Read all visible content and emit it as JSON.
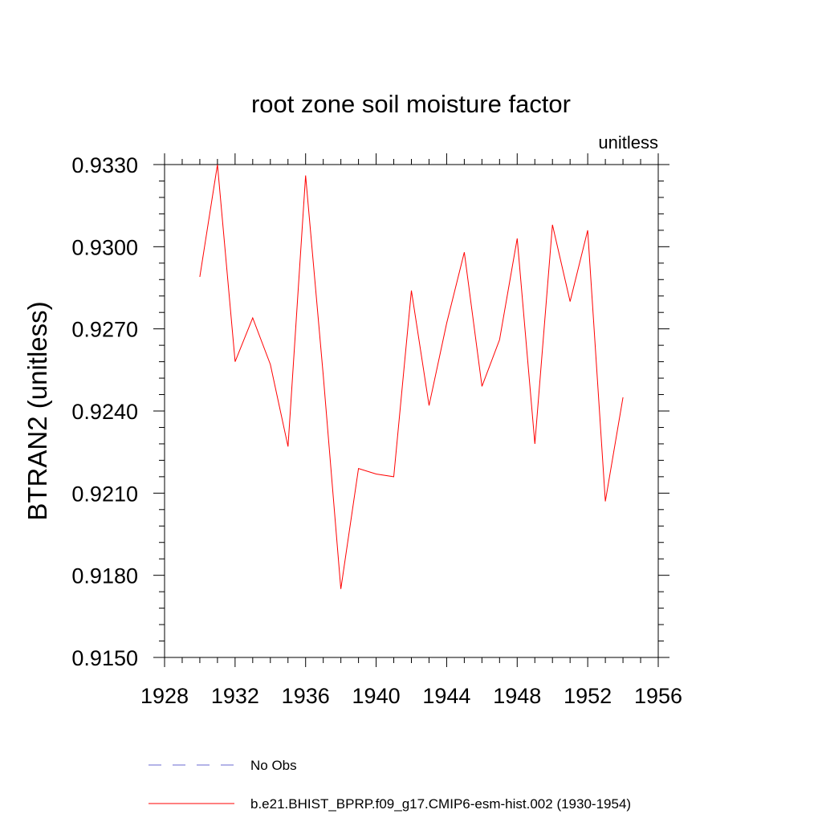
{
  "chart_data": {
    "type": "line",
    "title": "root zone soil moisture factor",
    "units_label": "unitless",
    "ylabel": "BTRAN2  (unitless)",
    "xlabel": "",
    "xlim": [
      1928,
      1956
    ],
    "ylim": [
      0.915,
      0.933
    ],
    "x_ticks": [
      1928,
      1932,
      1936,
      1940,
      1944,
      1948,
      1952,
      1956
    ],
    "x_tick_labels": [
      "1928",
      "1932",
      "1936",
      "1940",
      "1944",
      "1948",
      "1952",
      "1956"
    ],
    "y_ticks": [
      0.915,
      0.918,
      0.921,
      0.924,
      0.927,
      0.93,
      0.933
    ],
    "y_tick_labels": [
      "0.9150",
      "0.9180",
      "0.9210",
      "0.9240",
      "0.9270",
      "0.9300",
      "0.9330"
    ],
    "grid": false,
    "series": [
      {
        "name": "b.e21.BHIST_BPRP.f09_g17.CMIP6-esm-hist.002 (1930-1954)",
        "color": "#ff0000",
        "dash": "solid",
        "x": [
          1930,
          1931,
          1932,
          1933,
          1934,
          1935,
          1936,
          1937,
          1938,
          1939,
          1940,
          1941,
          1942,
          1943,
          1944,
          1945,
          1946,
          1947,
          1948,
          1949,
          1950,
          1951,
          1952,
          1953,
          1954
        ],
        "values": [
          0.9289,
          0.933,
          0.9258,
          0.9274,
          0.9257,
          0.9227,
          0.9326,
          0.9253,
          0.9175,
          0.9219,
          0.9217,
          0.9216,
          0.9284,
          0.9242,
          0.9272,
          0.9298,
          0.9249,
          0.9266,
          0.9303,
          0.9228,
          0.9308,
          0.928,
          0.9306,
          0.9207,
          0.9245
        ]
      }
    ],
    "legend": {
      "placement": "bottom-left",
      "entries": [
        {
          "label": "No Obs",
          "color": "#6a6ad0",
          "dash": "dashed"
        },
        {
          "label": "b.e21.BHIST_BPRP.f09_g17.CMIP6-esm-hist.002 (1930-1954)",
          "color": "#ff0000",
          "dash": "solid"
        }
      ]
    }
  }
}
